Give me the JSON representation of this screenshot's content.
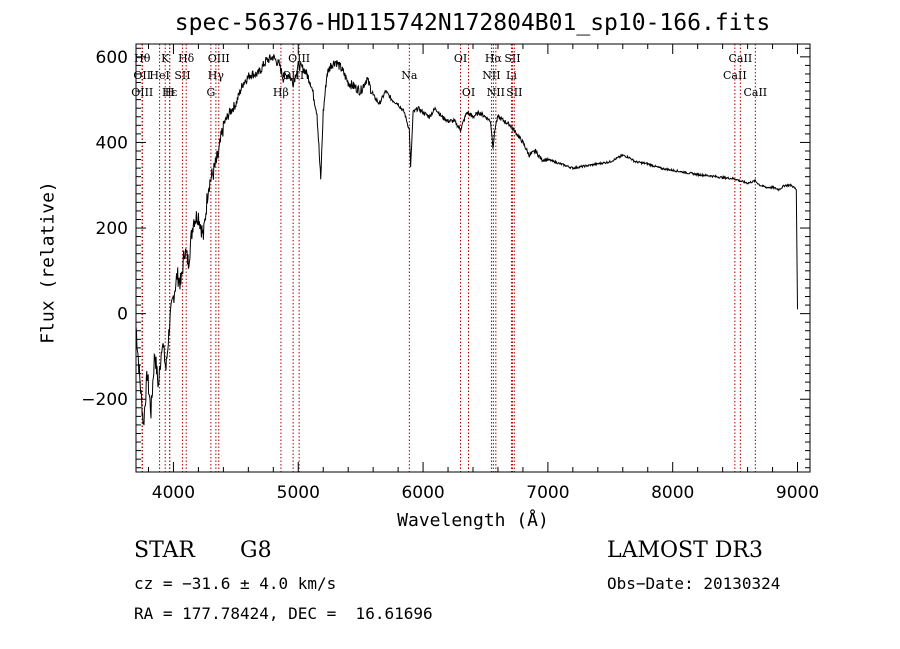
{
  "chart_data": {
    "type": "line",
    "title": "spec-56376-HD115742N172804B01_sp10-166.fits",
    "xlabel": "Wavelength (Å)",
    "ylabel": "Flux (relative)",
    "xlim": [
      3700,
      9100
    ],
    "ylim": [
      -370,
      630
    ],
    "xticks": [
      4000,
      5000,
      6000,
      7000,
      8000,
      9000
    ],
    "yticks": [
      -200,
      0,
      200,
      400,
      600
    ],
    "grid": false,
    "series": [
      {
        "values_x": [
          3700,
          3730,
          3760,
          3790,
          3820,
          3850,
          3880,
          3910,
          3940,
          3970,
          4000,
          4030,
          4060,
          4090,
          4120,
          4160,
          4200,
          4240,
          4280,
          4320,
          4360,
          4400,
          4450,
          4500,
          4560,
          4620,
          4680,
          4740,
          4800,
          4850,
          4880,
          4920,
          4960,
          5000,
          5050,
          5100,
          5150,
          5180,
          5200,
          5230,
          5260,
          5300,
          5350,
          5400,
          5450,
          5500,
          5550,
          5600,
          5650,
          5700,
          5750,
          5800,
          5850,
          5890,
          5900,
          5920,
          5960,
          6000,
          6050,
          6100,
          6150,
          6200,
          6250,
          6300,
          6350,
          6400,
          6450,
          6500,
          6540,
          6560,
          6580,
          6600,
          6650,
          6700,
          6750,
          6800,
          6850,
          6900,
          6950,
          7000,
          7100,
          7200,
          7300,
          7400,
          7500,
          7600,
          7650,
          7700,
          7800,
          7900,
          8000,
          8100,
          8200,
          8300,
          8400,
          8500,
          8540,
          8600,
          8660,
          8700,
          8750,
          8800,
          8850,
          8900,
          8950,
          8990,
          9000
        ],
        "values_y": [
          -30,
          -150,
          -260,
          -140,
          -230,
          -90,
          -170,
          -60,
          -130,
          -20,
          40,
          90,
          70,
          150,
          120,
          220,
          230,
          180,
          300,
          330,
          370,
          440,
          470,
          490,
          540,
          560,
          560,
          590,
          600,
          580,
          550,
          560,
          540,
          580,
          570,
          540,
          470,
          310,
          470,
          560,
          580,
          590,
          570,
          540,
          530,
          520,
          550,
          510,
          490,
          520,
          500,
          490,
          470,
          430,
          340,
          470,
          480,
          470,
          460,
          480,
          460,
          450,
          450,
          430,
          470,
          460,
          470,
          460,
          450,
          390,
          440,
          460,
          450,
          440,
          420,
          400,
          370,
          380,
          360,
          360,
          350,
          340,
          345,
          350,
          355,
          370,
          365,
          355,
          350,
          340,
          335,
          330,
          325,
          322,
          318,
          315,
          310,
          305,
          310,
          300,
          295,
          295,
          290,
          300,
          300,
          290,
          10
        ]
      }
    ],
    "line_labels": [
      {
        "x": 3750,
        "text": "Hθ",
        "row": 0
      },
      {
        "x": 3750,
        "text": "OII",
        "row": 1
      },
      {
        "x": 3750,
        "text": "OIII",
        "row": 2
      },
      {
        "x": 3889,
        "text": "HeI",
        "row": 1
      },
      {
        "x": 3934,
        "text": "K",
        "row": 0
      },
      {
        "x": 3970,
        "text": "Hε",
        "row": 2
      },
      {
        "x": 3970,
        "text": "H",
        "row": 2
      },
      {
        "x": 4072,
        "text": "SII",
        "row": 1
      },
      {
        "x": 4102,
        "text": "Hδ",
        "row": 0
      },
      {
        "x": 4300,
        "text": "G",
        "row": 2
      },
      {
        "x": 4340,
        "text": "Hγ",
        "row": 1
      },
      {
        "x": 4363,
        "text": "OIII",
        "row": 0
      },
      {
        "x": 4861,
        "text": "Hβ",
        "row": 2
      },
      {
        "x": 4959,
        "text": "OIII",
        "row": 1
      },
      {
        "x": 5007,
        "text": "OIII",
        "row": 0
      },
      {
        "x": 5890,
        "text": "Na",
        "row": 1
      },
      {
        "x": 6300,
        "text": "OI",
        "row": 0
      },
      {
        "x": 6364,
        "text": "OI",
        "row": 2
      },
      {
        "x": 6548,
        "text": "NII",
        "row": 1
      },
      {
        "x": 6563,
        "text": "Hα",
        "row": 0
      },
      {
        "x": 6583,
        "text": "NII",
        "row": 2
      },
      {
        "x": 6708,
        "text": "Li",
        "row": 1
      },
      {
        "x": 6716,
        "text": "SII",
        "row": 0
      },
      {
        "x": 6731,
        "text": "SII",
        "row": 2
      },
      {
        "x": 8498,
        "text": "CaII",
        "row": 1
      },
      {
        "x": 8542,
        "text": "CaII",
        "row": 0
      },
      {
        "x": 8662,
        "text": "CaII",
        "row": 2
      }
    ]
  },
  "info": {
    "class": "STAR",
    "subclass": "G8",
    "survey": "LAMOST DR3",
    "cz": "cz = −31.6 ± 4.0 km/s",
    "obs_date": "Obs−Date: 20130324",
    "radec": "RA = 177.78424, DEC =  16.61696"
  },
  "colors": {
    "line_marker": "#b00000",
    "spectrum": "#000000"
  }
}
